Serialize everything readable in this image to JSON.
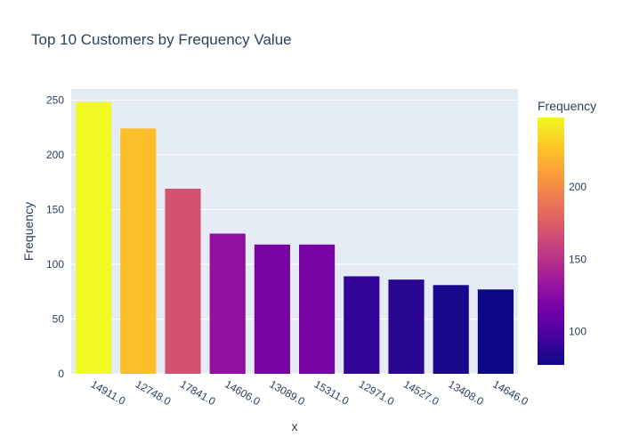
{
  "chart_data": {
    "type": "bar",
    "title": "Top 10 Customers by Frequency Value",
    "xlabel": "x",
    "ylabel": "Frequency",
    "categories": [
      "14911.0",
      "12748.0",
      "17841.0",
      "14606.0",
      "13089.0",
      "15311.0",
      "12971.0",
      "14527.0",
      "13408.0",
      "14646.0"
    ],
    "values": [
      248,
      224,
      169,
      128,
      118,
      118,
      89,
      86,
      81,
      77
    ],
    "ylim": [
      0,
      260
    ],
    "yticks": [
      "0",
      "50",
      "100",
      "150",
      "200",
      "250"
    ],
    "grid": true,
    "colorbar": {
      "title": "Frequency",
      "ticks": [
        "100",
        "150",
        "200"
      ],
      "range": [
        77,
        248
      ],
      "colorscale": [
        "#0d0887",
        "#46039f",
        "#7201a8",
        "#9c179e",
        "#bd3786",
        "#d8576b",
        "#ed7953",
        "#fb9f3a",
        "#fdca26",
        "#f0f921"
      ]
    },
    "colors": {
      "plot_bg": "#e5ecf6",
      "grid": "#ffffff",
      "text": "#2a3f5f"
    }
  }
}
